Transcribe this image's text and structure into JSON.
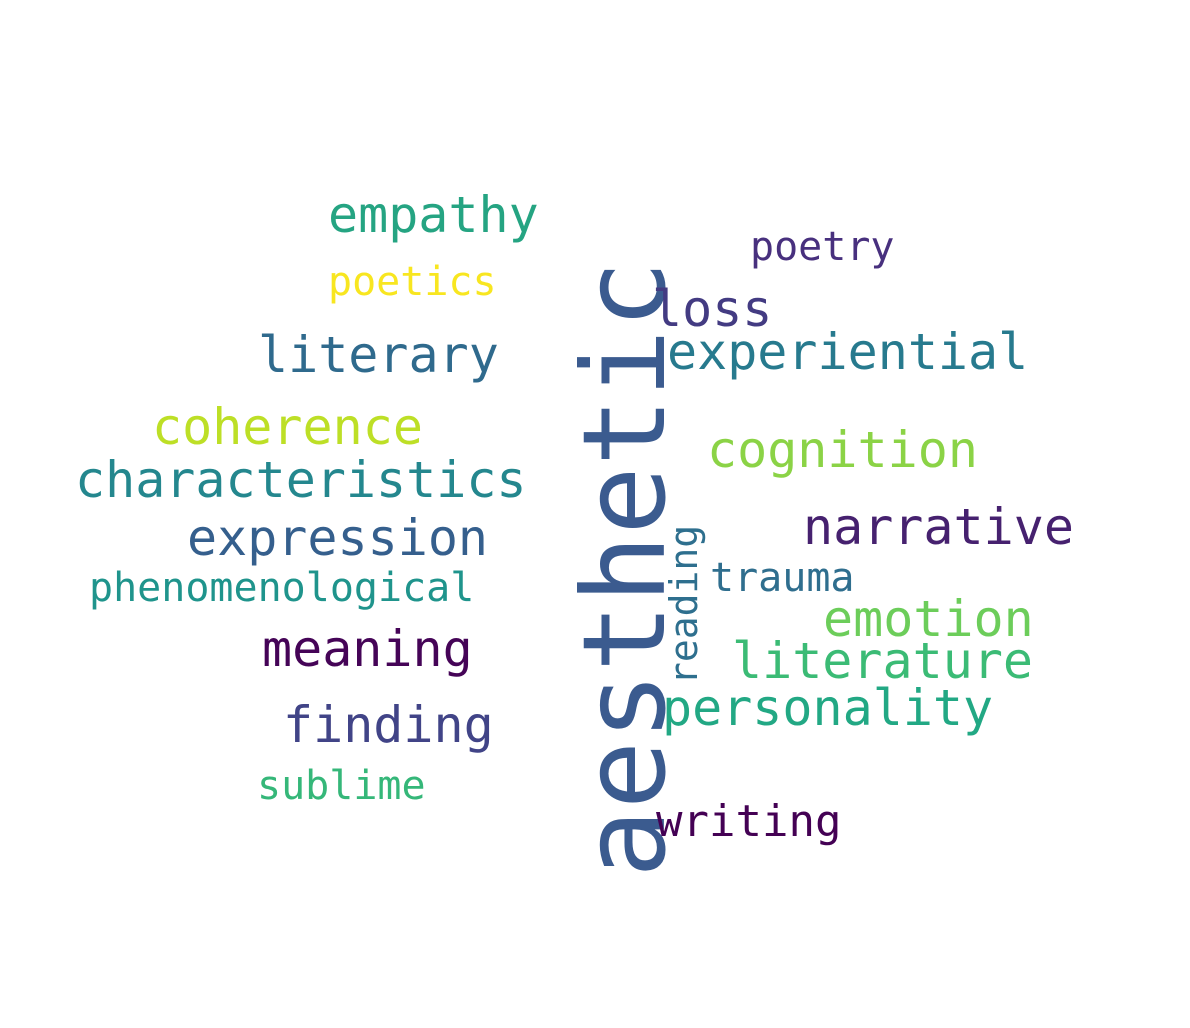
{
  "words": [
    {
      "id": "aesthetic",
      "text": "aesthetic",
      "color": "#3b5b8f"
    },
    {
      "id": "empathy",
      "text": "empathy",
      "color": "#25a482"
    },
    {
      "id": "poetry",
      "text": "poetry",
      "color": "#48307e"
    },
    {
      "id": "poetics",
      "text": "poetics",
      "color": "#f8e620"
    },
    {
      "id": "loss",
      "text": "loss",
      "color": "#433b82"
    },
    {
      "id": "literary",
      "text": "literary",
      "color": "#2f6a8d"
    },
    {
      "id": "experiential",
      "text": "experiential",
      "color": "#277a8e"
    },
    {
      "id": "coherence",
      "text": "coherence",
      "color": "#bddf26"
    },
    {
      "id": "cognition",
      "text": "cognition",
      "color": "#8bd346"
    },
    {
      "id": "characteristics",
      "text": "characteristics",
      "color": "#24878e"
    },
    {
      "id": "narrative",
      "text": "narrative",
      "color": "#46216f"
    },
    {
      "id": "expression",
      "text": "expression",
      "color": "#355f8d"
    },
    {
      "id": "reading",
      "text": "reading",
      "color": "#2e6f8e"
    },
    {
      "id": "trauma",
      "text": "trauma",
      "color": "#2f6e8e"
    },
    {
      "id": "phenomenological",
      "text": "phenomenological",
      "color": "#1f948c"
    },
    {
      "id": "emotion",
      "text": "emotion",
      "color": "#6ccd5a"
    },
    {
      "id": "meaning",
      "text": "meaning",
      "color": "#450457"
    },
    {
      "id": "literature",
      "text": "literature",
      "color": "#3bbb75"
    },
    {
      "id": "personality",
      "text": "personality",
      "color": "#22a884"
    },
    {
      "id": "finding",
      "text": "finding",
      "color": "#414487"
    },
    {
      "id": "sublime",
      "text": "sublime",
      "color": "#35b779"
    },
    {
      "id": "writing",
      "text": "writing",
      "color": "#440154"
    }
  ]
}
